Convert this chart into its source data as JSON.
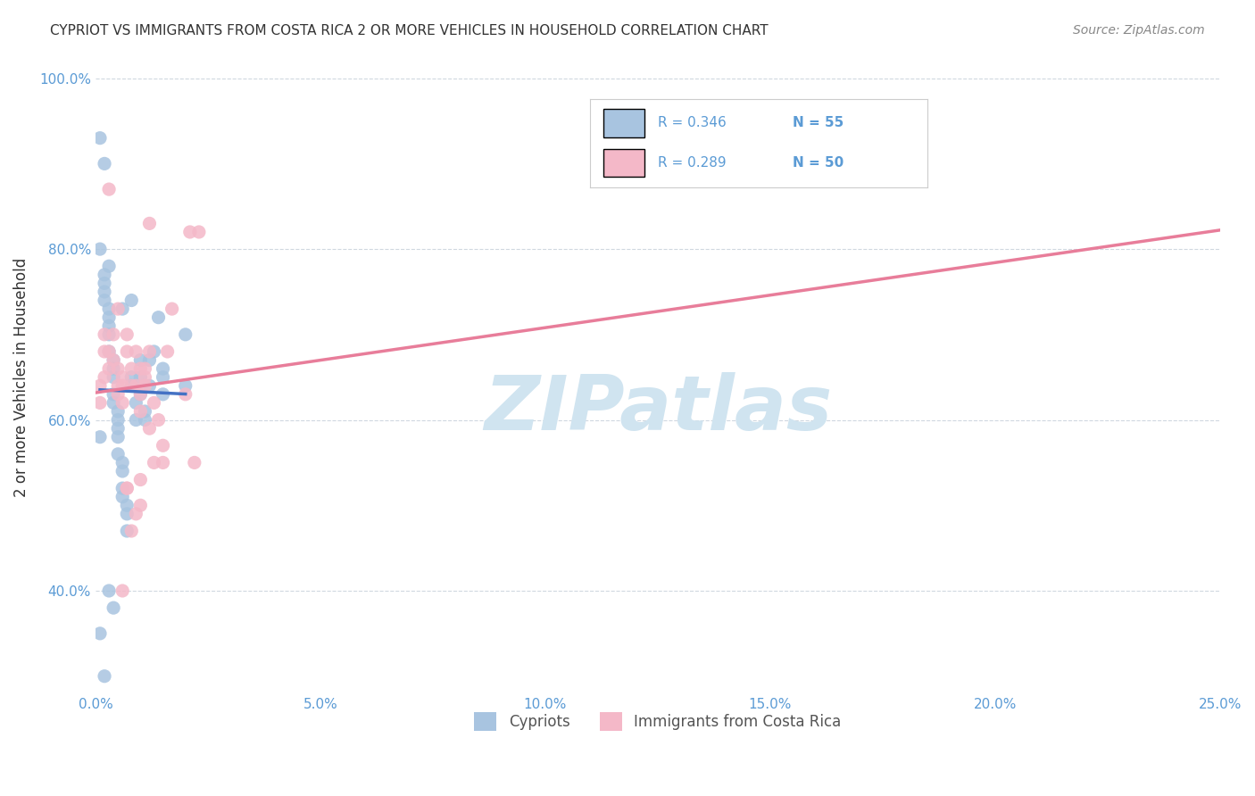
{
  "title": "CYPRIOT VS IMMIGRANTS FROM COSTA RICA 2 OR MORE VEHICLES IN HOUSEHOLD CORRELATION CHART",
  "source": "Source: ZipAtlas.com",
  "xlabel": "",
  "ylabel": "2 or more Vehicles in Household",
  "xlim": [
    0.0,
    0.25
  ],
  "ylim": [
    0.28,
    1.02
  ],
  "xticks": [
    0.0,
    0.05,
    0.1,
    0.15,
    0.2,
    0.25
  ],
  "xticklabels": [
    "0.0%",
    "5.0%",
    "10.0%",
    "15.0%",
    "20.0%",
    "25.0%"
  ],
  "yticks": [
    0.4,
    0.6,
    0.8,
    1.0
  ],
  "yticklabels": [
    "40.0%",
    "60.0%",
    "80.0%",
    "100.0%"
  ],
  "legend_label1": "Cypriots",
  "legend_label2": "Immigrants from Costa Rica",
  "R1": 0.346,
  "N1": 55,
  "R2": 0.289,
  "N2": 50,
  "color1": "#a8c4e0",
  "color2": "#f4b8c8",
  "line_color1": "#4472c4",
  "line_color2": "#e87d9a",
  "diag_color": "#c0c8d0",
  "tick_color": "#5b9bd5",
  "grid_color": "#d0d8e0",
  "blue_x": [
    0.001,
    0.001,
    0.002,
    0.002,
    0.002,
    0.002,
    0.003,
    0.003,
    0.003,
    0.003,
    0.003,
    0.004,
    0.004,
    0.004,
    0.004,
    0.004,
    0.005,
    0.005,
    0.005,
    0.005,
    0.005,
    0.006,
    0.006,
    0.006,
    0.006,
    0.007,
    0.007,
    0.007,
    0.008,
    0.008,
    0.009,
    0.009,
    0.01,
    0.01,
    0.01,
    0.011,
    0.011,
    0.012,
    0.012,
    0.013,
    0.014,
    0.015,
    0.015,
    0.015,
    0.02,
    0.02,
    0.002,
    0.001,
    0.001,
    0.003,
    0.004,
    0.006,
    0.008,
    0.002,
    0.003
  ],
  "blue_y": [
    0.35,
    0.58,
    0.75,
    0.76,
    0.77,
    0.74,
    0.73,
    0.72,
    0.71,
    0.7,
    0.68,
    0.67,
    0.66,
    0.65,
    0.63,
    0.62,
    0.61,
    0.6,
    0.59,
    0.58,
    0.56,
    0.55,
    0.54,
    0.52,
    0.51,
    0.5,
    0.49,
    0.47,
    0.65,
    0.64,
    0.62,
    0.6,
    0.65,
    0.67,
    0.63,
    0.61,
    0.6,
    0.64,
    0.67,
    0.68,
    0.72,
    0.65,
    0.63,
    0.66,
    0.64,
    0.7,
    0.9,
    0.93,
    0.8,
    0.4,
    0.38,
    0.73,
    0.74,
    0.3,
    0.78
  ],
  "pink_x": [
    0.001,
    0.001,
    0.002,
    0.002,
    0.002,
    0.003,
    0.003,
    0.004,
    0.004,
    0.005,
    0.005,
    0.005,
    0.006,
    0.006,
    0.006,
    0.007,
    0.007,
    0.008,
    0.008,
    0.009,
    0.009,
    0.01,
    0.01,
    0.01,
    0.011,
    0.011,
    0.012,
    0.013,
    0.014,
    0.015,
    0.015,
    0.016,
    0.017,
    0.02,
    0.022,
    0.023,
    0.012,
    0.006,
    0.008,
    0.01,
    0.01,
    0.013,
    0.007,
    0.009,
    0.012,
    0.021,
    0.005,
    0.007,
    0.011,
    0.003
  ],
  "pink_y": [
    0.62,
    0.64,
    0.65,
    0.68,
    0.7,
    0.68,
    0.66,
    0.7,
    0.67,
    0.66,
    0.64,
    0.63,
    0.65,
    0.64,
    0.62,
    0.7,
    0.68,
    0.66,
    0.64,
    0.68,
    0.64,
    0.66,
    0.63,
    0.61,
    0.66,
    0.64,
    0.59,
    0.55,
    0.6,
    0.55,
    0.57,
    0.68,
    0.73,
    0.63,
    0.55,
    0.82,
    0.83,
    0.4,
    0.47,
    0.5,
    0.53,
    0.62,
    0.52,
    0.49,
    0.68,
    0.82,
    0.73,
    0.52,
    0.65,
    0.87
  ],
  "watermark": "ZIPatlas",
  "watermark_color": "#d0e4f0",
  "background_color": "#ffffff"
}
